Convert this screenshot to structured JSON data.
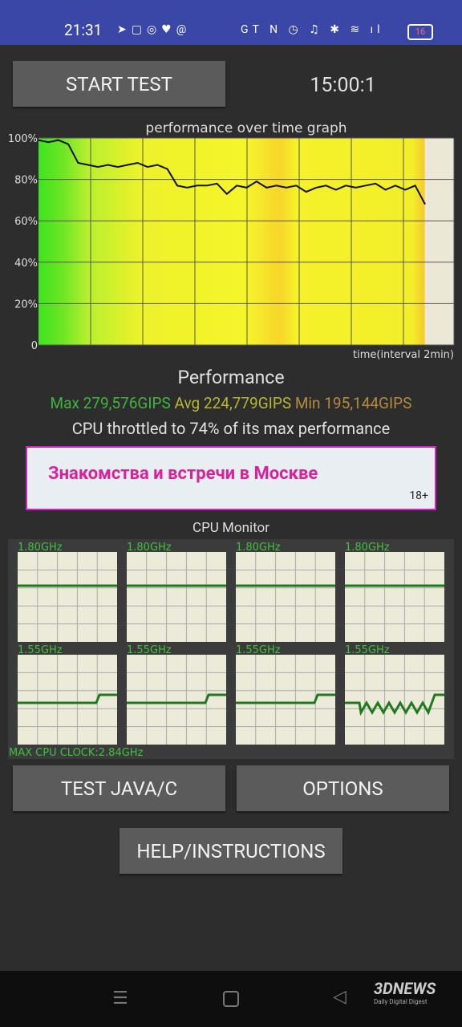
{
  "status_bar": {
    "time": "21:31",
    "battery": "16"
  },
  "buttons": {
    "start": "START TEST",
    "test_java": "TEST JAVA/C",
    "options": "OPTIONS",
    "help": "HELP/INSTRUCTIONS"
  },
  "timer": "15:00:1",
  "graph": {
    "title": "performance over time graph",
    "x_label": "time(interval 2min)",
    "ylim": [
      0,
      100
    ],
    "yticks": [
      {
        "value": 100,
        "label": "100%"
      },
      {
        "value": 80,
        "label": "80%"
      },
      {
        "value": 60,
        "label": "60%"
      },
      {
        "value": 40,
        "label": "40%"
      },
      {
        "value": 20,
        "label": "20%"
      },
      0
    ],
    "values": [
      99,
      98,
      99,
      97,
      88,
      87,
      86,
      87,
      86,
      87,
      88,
      86,
      87,
      85,
      77,
      76,
      77,
      77,
      78,
      73,
      77,
      76,
      79,
      76,
      77,
      76,
      77,
      74,
      76,
      77,
      75,
      77,
      76,
      77,
      78,
      75,
      77,
      75,
      77,
      68
    ]
  },
  "performance": {
    "heading": "Performance",
    "max": "Max 279,576GIPS",
    "avg": "Avg 224,779GIPS",
    "min": "Min 195,144GIPS",
    "throttle": "CPU throttled to 74% of its max performance"
  },
  "ad": {
    "text": "Знакомства и встречи в Москве",
    "age": "18+"
  },
  "cpu_monitor": {
    "title": "CPU Monitor",
    "cores": [
      "1.80GHz",
      "1.80GHz",
      "1.80GHz",
      "1.80GHz",
      "1.55GHz",
      "1.55GHz",
      "1.55GHz",
      "1.55GHz"
    ],
    "max_clock": "MAX CPU CLOCK:2.84GHz"
  },
  "watermark": {
    "brand": "3DNEWS",
    "tagline": "Daily Digital Digest"
  }
}
